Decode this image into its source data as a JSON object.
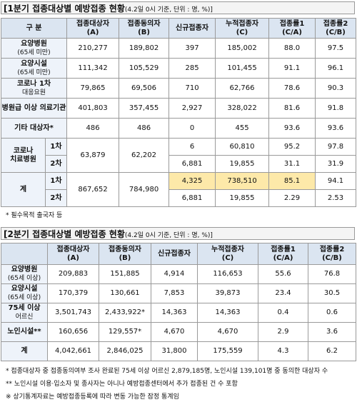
{
  "table1": {
    "title": "[1분기 접종대상별 예방접종 현황",
    "note": "(4.2일 0시 기준, 단위 : 명, %)]",
    "headers": [
      [
        "구 분"
      ],
      [
        "접종대상자",
        "(A)"
      ],
      [
        "접종동의자",
        "(B)"
      ],
      [
        "신규접종자"
      ],
      [
        "누적접종자",
        "(C)"
      ],
      [
        "접종률1",
        "(C/A)"
      ],
      [
        "접종률2",
        "(C/B)"
      ]
    ],
    "rows": [
      {
        "label": [
          "요양병원",
          "(65세 미만)"
        ],
        "cells": [
          "210,277",
          "189,802",
          "397",
          "185,002",
          "88.0",
          "97.5"
        ]
      },
      {
        "label": [
          "요양시설",
          "(65세 미만)"
        ],
        "cells": [
          "111,342",
          "105,529",
          "285",
          "101,455",
          "91.1",
          "96.1"
        ]
      },
      {
        "label": [
          "코로나 1차",
          "대응요원"
        ],
        "cells": [
          "79,865",
          "69,506",
          "710",
          "62,766",
          "78.6",
          "90.3"
        ]
      },
      {
        "label": [
          "병원급 이상 의료기관"
        ],
        "cells": [
          "401,803",
          "357,455",
          "2,927",
          "328,022",
          "81.6",
          "91.8"
        ]
      },
      {
        "label": [
          "기타 대상자*"
        ],
        "cells": [
          "486",
          "486",
          "0",
          "455",
          "93.6",
          "93.6"
        ]
      },
      {
        "label": [
          "코로나",
          "치료병원"
        ],
        "doses": [
          {
            "dose": "1차",
            "cells": [
              "63,879",
              "62,202",
              "6",
              "60,810",
              "95.2",
              "97.8"
            ]
          },
          {
            "dose": "2차",
            "cells": [
              "6,881",
              "19,855",
              "31.1",
              "31.9"
            ]
          }
        ]
      },
      {
        "label": [
          "계"
        ],
        "doses": [
          {
            "dose": "1차",
            "cells": [
              "867,652",
              "784,980",
              "4,325",
              "738,510",
              "85.1",
              "94.1"
            ]
          },
          {
            "dose": "2차",
            "cells": [
              "6,881",
              "19,855",
              "2.29",
              "2.53"
            ]
          }
        ]
      }
    ],
    "footnote": "* 필수목적 출국자 등"
  },
  "table2": {
    "title": "[2분기 접종대상별 예방접종 현황",
    "note": "(4.2일 0시 기준, 단위 : 명, %)]",
    "headers": [
      [
        "접종대상자",
        "(A)"
      ],
      [
        "접종동의자",
        "(B)"
      ],
      [
        "신규접종자"
      ],
      [
        "누적접종자",
        "(C)"
      ],
      [
        "접종률1",
        "(C/A)"
      ],
      [
        "접종률2",
        "(C/B)"
      ]
    ],
    "rows": [
      {
        "label": [
          "요양병원",
          "(65세 이상)"
        ],
        "cells": [
          "209,883",
          "151,885",
          "4,914",
          "116,653",
          "55.6",
          "76.8"
        ]
      },
      {
        "label": [
          "요양시설",
          "(65세 이상)"
        ],
        "cells": [
          "170,379",
          "130,661",
          "7,853",
          "39,873",
          "23.4",
          "30.5"
        ]
      },
      {
        "label": [
          "75세 이상",
          "어르신"
        ],
        "cells": [
          "3,501,743",
          "2,433,922*",
          "14,363",
          "14,363",
          "0.4",
          "0.6"
        ]
      },
      {
        "label": [
          "노인시설**"
        ],
        "cells": [
          "160,656",
          "129,557*",
          "4,670",
          "4,670",
          "2.9",
          "3.6"
        ]
      },
      {
        "label": [
          "계"
        ],
        "cells": [
          "4,042,661",
          "2,846,025",
          "31,800",
          "175,559",
          "4.3",
          "6.2"
        ]
      }
    ]
  },
  "notes": [
    "* 접종대상자 중 접종동의여부 조사 완료된 75세 이상 어르신 2,879,185명, 노인시설 139,101명 중 동의한 대상자 수",
    "** 노인시설 이용·입소자 및 종사자는 아니나 예방접종센터에서 추가 접종된 건 수 포함",
    "※ 상기통계자료는 예방접종등록에 따라 변동 가능한 잠정 통계임"
  ]
}
